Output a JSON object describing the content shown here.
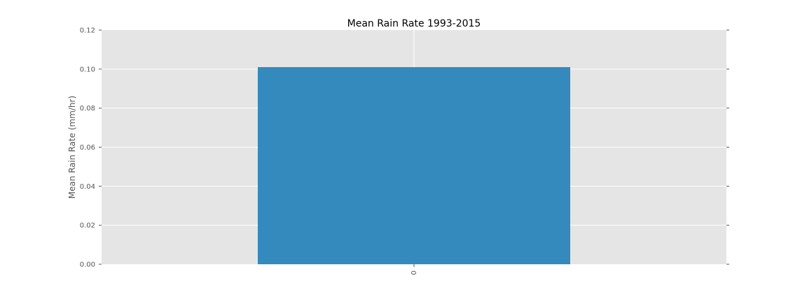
{
  "chart_data": {
    "type": "bar",
    "title": "Mean Rain Rate 1993-2015",
    "xlabel": "",
    "ylabel": "Mean Rain Rate (mm/hr)",
    "categories": [
      "0"
    ],
    "values": [
      0.101
    ],
    "ylim": [
      0,
      0.12
    ],
    "yticks": [
      "0.00",
      "0.02",
      "0.04",
      "0.06",
      "0.08",
      "0.10",
      "0.12"
    ],
    "grid": true,
    "bar_color": "#348abd",
    "background_color": "#e5e5e5",
    "grid_color": "#ffffff"
  }
}
